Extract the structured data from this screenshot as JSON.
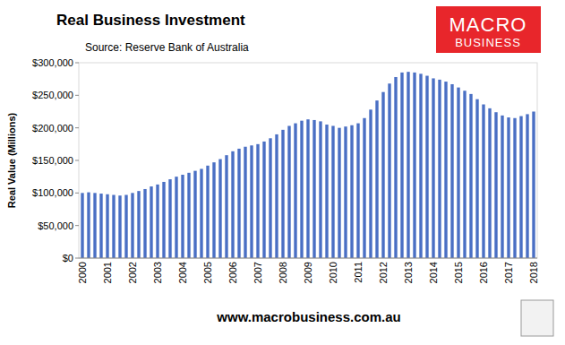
{
  "chart_data": {
    "type": "bar",
    "title": "Real Business Investment",
    "subtitle": "Source: Reserve Bank of Australia",
    "y_label": "Real Value (Millions)",
    "logo_text": "MACRO",
    "logo_subtext": "BUSINESS",
    "footer": "www.macrobusiness.com.au",
    "categories": [
      "2000",
      null,
      null,
      null,
      "2001",
      null,
      null,
      null,
      "2002",
      null,
      null,
      null,
      "2003",
      null,
      null,
      null,
      "2004",
      null,
      null,
      null,
      "2005",
      null,
      null,
      null,
      "2006",
      null,
      null,
      null,
      "2007",
      null,
      null,
      null,
      "2008",
      null,
      null,
      null,
      "2009",
      null,
      null,
      null,
      "2010",
      null,
      null,
      null,
      "2011",
      null,
      null,
      null,
      "2012",
      null,
      null,
      null,
      "2013",
      null,
      null,
      null,
      "2014",
      null,
      null,
      null,
      "2015",
      null,
      null,
      null,
      "2016",
      null,
      null,
      null,
      "2017",
      null,
      null,
      null,
      "2018"
    ],
    "values": [
      100000,
      101000,
      100000,
      99000,
      98000,
      97000,
      96000,
      97000,
      100000,
      103000,
      106000,
      110000,
      113000,
      117000,
      121000,
      125000,
      128000,
      131000,
      134000,
      137000,
      142000,
      147000,
      152000,
      158000,
      164000,
      168000,
      171000,
      173000,
      175000,
      179000,
      184000,
      190000,
      197000,
      203000,
      207000,
      211000,
      213000,
      212000,
      210000,
      205000,
      203000,
      200000,
      202000,
      204000,
      207000,
      215000,
      228000,
      242000,
      255000,
      268000,
      278000,
      285000,
      286000,
      285000,
      283000,
      280000,
      276000,
      274000,
      271000,
      267000,
      262000,
      257000,
      252000,
      244000,
      236000,
      230000,
      224000,
      219000,
      216000,
      215000,
      218000,
      221000,
      225000
    ],
    "color": "#4a6fc4",
    "ylim": [
      0,
      300000
    ],
    "yticks": [
      {
        "value": 0,
        "label": "$0"
      },
      {
        "value": 50000,
        "label": "$50,000"
      },
      {
        "value": 100000,
        "label": "$100,000"
      },
      {
        "value": 150000,
        "label": "$150,000"
      },
      {
        "value": 200000,
        "label": "$200,000"
      },
      {
        "value": 250000,
        "label": "$250,000"
      },
      {
        "value": 300000,
        "label": "$300,000"
      }
    ],
    "grid": false
  }
}
